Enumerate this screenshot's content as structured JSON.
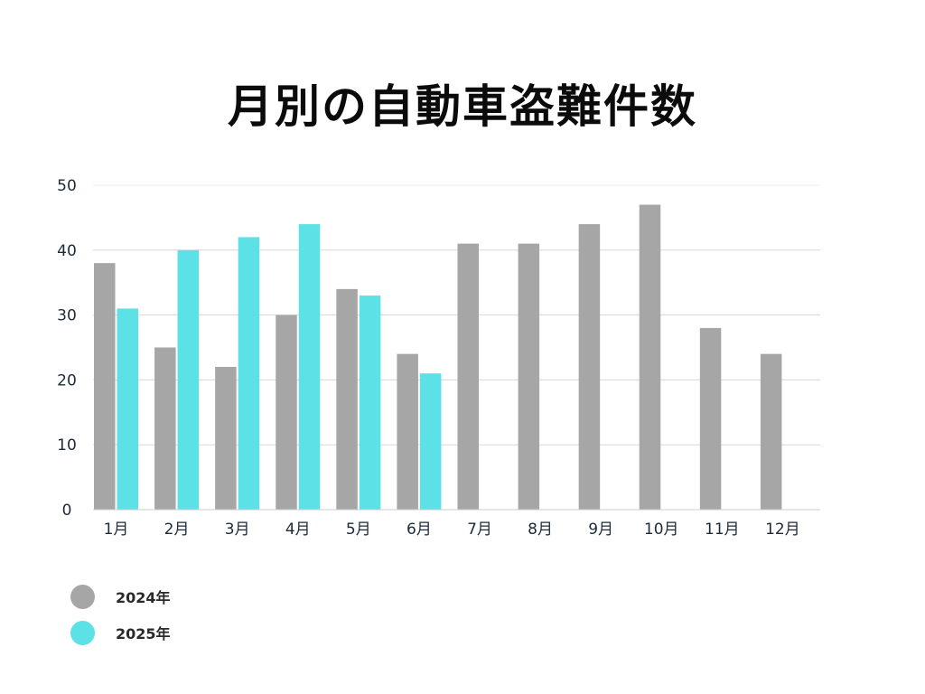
{
  "chart_data": {
    "type": "bar",
    "title": "月別の自動車盗難件数",
    "categories": [
      "1月",
      "2月",
      "3月",
      "4月",
      "5月",
      "6月",
      "7月",
      "8月",
      "9月",
      "10月",
      "11月",
      "12月"
    ],
    "series": [
      {
        "name": "2024年",
        "color": "#a6a6a6",
        "values": [
          38,
          25,
          22,
          30,
          34,
          24,
          41,
          41,
          44,
          47,
          28,
          24
        ]
      },
      {
        "name": "2025年",
        "color": "#5ce1e6",
        "values": [
          31,
          40,
          42,
          44,
          33,
          21,
          null,
          null,
          null,
          null,
          null,
          null
        ]
      }
    ],
    "ylim": [
      0,
      50
    ],
    "yticks": [
      0,
      10,
      20,
      30,
      40,
      50
    ],
    "grid": true,
    "legend_position": "bottom-left",
    "xlabel": "",
    "ylabel": ""
  }
}
